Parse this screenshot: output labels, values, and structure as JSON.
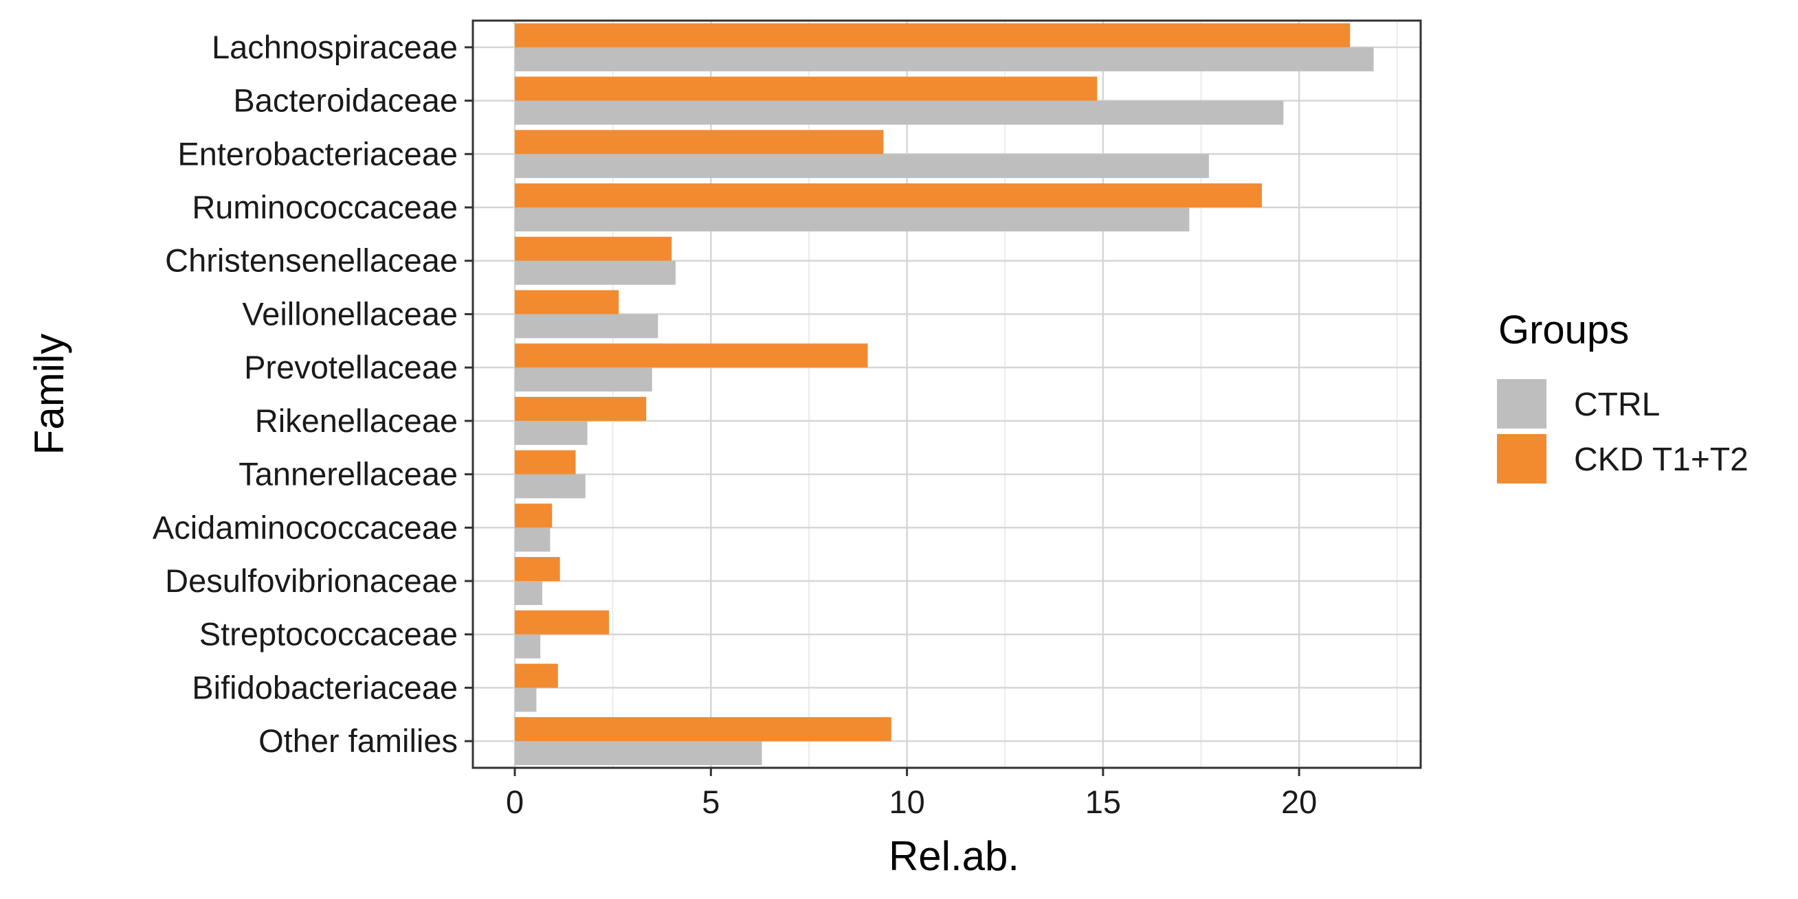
{
  "chart_data": {
    "type": "bar",
    "orientation": "horizontal",
    "categories": [
      "Lachnospiraceae",
      "Bacteroidaceae",
      "Enterobacteriaceae",
      "Ruminococcaceae",
      "Christensenellaceae",
      "Veillonellaceae",
      "Prevotellaceae",
      "Rikenellaceae",
      "Tannerellaceae",
      "Acidaminococcaceae",
      "Desulfovibrionaceae",
      "Streptococcaceae",
      "Bifidobacteriaceae",
      "Other families"
    ],
    "series": [
      {
        "name": "CTRL",
        "color": "#bebebe",
        "values": [
          21.9,
          19.6,
          17.7,
          17.2,
          4.1,
          3.65,
          3.5,
          1.85,
          1.8,
          0.9,
          0.7,
          0.65,
          0.55,
          6.3
        ]
      },
      {
        "name": "CKD T1+T2",
        "color": "#f28a30",
        "values": [
          21.3,
          14.85,
          9.4,
          19.05,
          4.0,
          2.65,
          9.0,
          3.35,
          1.55,
          0.95,
          1.15,
          2.4,
          1.1,
          9.6
        ]
      }
    ],
    "xlabel": "Rel.ab.",
    "ylabel": "Family",
    "xlim": [
      -1.07,
      23.1
    ],
    "xticks": [
      0,
      5,
      10,
      15,
      20
    ],
    "xtick_labels": [
      "0",
      "5",
      "10",
      "15",
      "20"
    ],
    "grid": true,
    "legend": {
      "title": "Groups",
      "placement": "right",
      "entries": [
        "CTRL",
        "CKD T1+T2"
      ]
    }
  }
}
